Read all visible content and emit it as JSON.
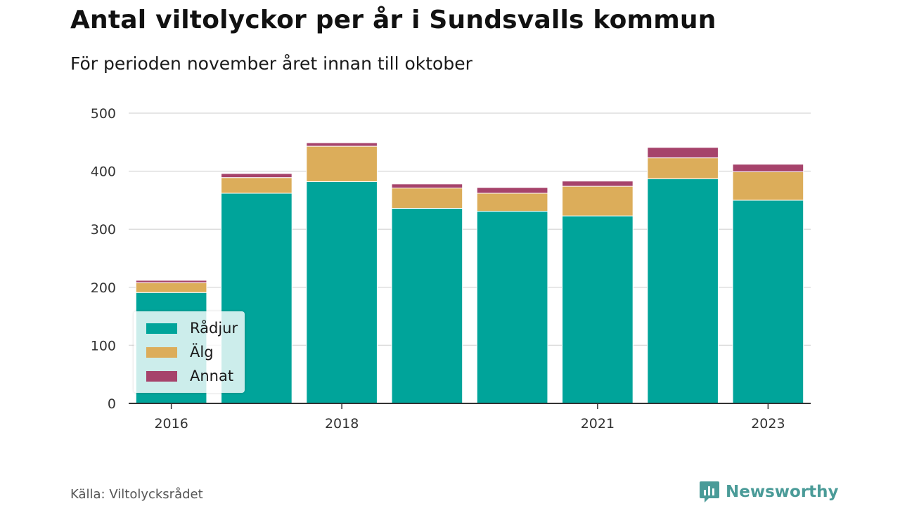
{
  "title": "Antal viltolyckor per år i Sundsvalls kommun",
  "subtitle": "För perioden november året innan till oktober",
  "source": "Källa: Viltolycksrådet",
  "brand": "Newsworthy",
  "colors": {
    "radjur": "#00a49a",
    "alg": "#dcad5a",
    "annat": "#a6436b",
    "grid": "#dddddd",
    "axis": "#333333",
    "brand": "#4a9b98"
  },
  "chart_data": {
    "type": "bar",
    "stacked": true,
    "categories": [
      "2016",
      "2017",
      "2018",
      "2019",
      "2020",
      "2021",
      "2022",
      "2023"
    ],
    "x_tick_labels": [
      "2016",
      "2018",
      "2021",
      "2023"
    ],
    "series": [
      {
        "name": "Rådjur",
        "color": "#00a49a",
        "values": [
          191,
          362,
          382,
          336,
          331,
          323,
          387,
          350
        ]
      },
      {
        "name": "Älg",
        "color": "#dcad5a",
        "values": [
          17,
          27,
          61,
          35,
          31,
          51,
          36,
          49
        ]
      },
      {
        "name": "Annat",
        "color": "#a6436b",
        "values": [
          4,
          7,
          6,
          7,
          10,
          9,
          18,
          13
        ]
      }
    ],
    "ylim": [
      0,
      500
    ],
    "y_ticks": [
      0,
      100,
      200,
      300,
      400,
      500
    ],
    "grid": true,
    "legend_position": "bottom-left"
  }
}
